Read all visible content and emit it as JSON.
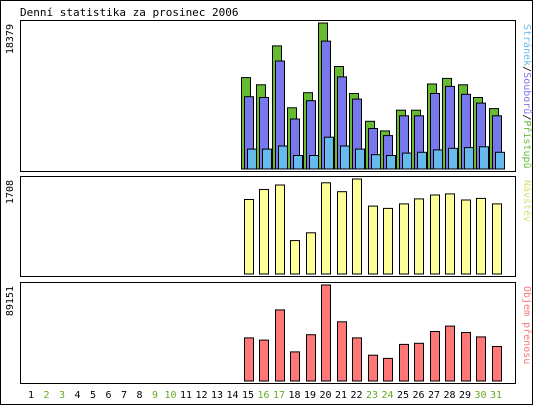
{
  "chart_data": {
    "type": "bar",
    "title": "Denní statistika za prosinec 2006",
    "categories": [
      "1",
      "2",
      "3",
      "4",
      "5",
      "6",
      "7",
      "8",
      "9",
      "10",
      "11",
      "12",
      "13",
      "14",
      "15",
      "16",
      "17",
      "18",
      "19",
      "20",
      "21",
      "22",
      "23",
      "24",
      "25",
      "26",
      "27",
      "28",
      "29",
      "30",
      "31"
    ],
    "weekend_days": [
      2,
      3,
      9,
      10,
      16,
      17,
      23,
      24,
      30,
      31
    ],
    "colors": {
      "weekday": "#000000",
      "weekend": "#66aa22",
      "hits": "#66bb33",
      "files": "#7777ee",
      "pages": "#66bbee",
      "visits": "#ffff99",
      "volume": "#ff7777"
    },
    "panels": [
      {
        "id": "traffic",
        "ymax": 18379,
        "ymax_label": "18379",
        "legend": [
          {
            "text": "Stránek",
            "color": "#66bbee"
          },
          {
            "text": "/",
            "color": "#000000"
          },
          {
            "text": "Souborů",
            "color": "#7777ee"
          },
          {
            "text": "/",
            "color": "#000000"
          },
          {
            "text": "Přístupů",
            "color": "#66bb33"
          }
        ],
        "series": [
          {
            "name": "Přístupů",
            "color": "#66bb33",
            "values": [
              0,
              0,
              0,
              0,
              0,
              0,
              0,
              0,
              0,
              0,
              0,
              0,
              0,
              0,
              11500,
              10600,
              15500,
              7700,
              9600,
              18379,
              12900,
              9500,
              6000,
              4800,
              7400,
              7400,
              10700,
              11400,
              10600,
              9000,
              7600
            ]
          },
          {
            "name": "Souborů",
            "color": "#7777ee",
            "values": [
              0,
              0,
              0,
              0,
              0,
              0,
              0,
              0,
              0,
              0,
              0,
              0,
              0,
              0,
              9100,
              9000,
              13600,
              6300,
              8600,
              16100,
              11600,
              8800,
              5100,
              4200,
              6700,
              6700,
              9500,
              10400,
              9400,
              8300,
              6700
            ]
          },
          {
            "name": "Stránek",
            "color": "#66bbee",
            "values": [
              0,
              0,
              0,
              0,
              0,
              0,
              0,
              0,
              0,
              0,
              0,
              0,
              0,
              0,
              2500,
              2500,
              2900,
              1700,
              1700,
              4000,
              2900,
              2500,
              1800,
              1700,
              2000,
              2100,
              2400,
              2600,
              2700,
              2800,
              2100
            ]
          }
        ]
      },
      {
        "id": "visits",
        "ymax": 1708,
        "ymax_label": "1708",
        "legend": [
          {
            "text": "Návštěv",
            "color": "#dddd77"
          }
        ],
        "series": [
          {
            "name": "Návštěv",
            "color": "#ffff99",
            "values": [
              0,
              0,
              0,
              0,
              0,
              0,
              0,
              0,
              0,
              0,
              0,
              0,
              0,
              0,
              1340,
              1520,
              1600,
              600,
              740,
              1640,
              1480,
              1708,
              1220,
              1180,
              1260,
              1350,
              1420,
              1440,
              1330,
              1360,
              1260
            ]
          }
        ]
      },
      {
        "id": "volume",
        "ymax": 89151,
        "ymax_label": "89151",
        "legend": [
          {
            "text": "Objem přenosu",
            "color": "#ff7777"
          }
        ],
        "series": [
          {
            "name": "Objem přenosu",
            "color": "#ff7777",
            "values": [
              0,
              0,
              0,
              0,
              0,
              0,
              0,
              0,
              0,
              0,
              0,
              0,
              0,
              0,
              40000,
              38000,
              66000,
              27000,
              43000,
              89151,
              55000,
              40000,
              24000,
              21000,
              34000,
              35000,
              46000,
              51000,
              45000,
              41000,
              32000
            ]
          }
        ]
      }
    ]
  }
}
